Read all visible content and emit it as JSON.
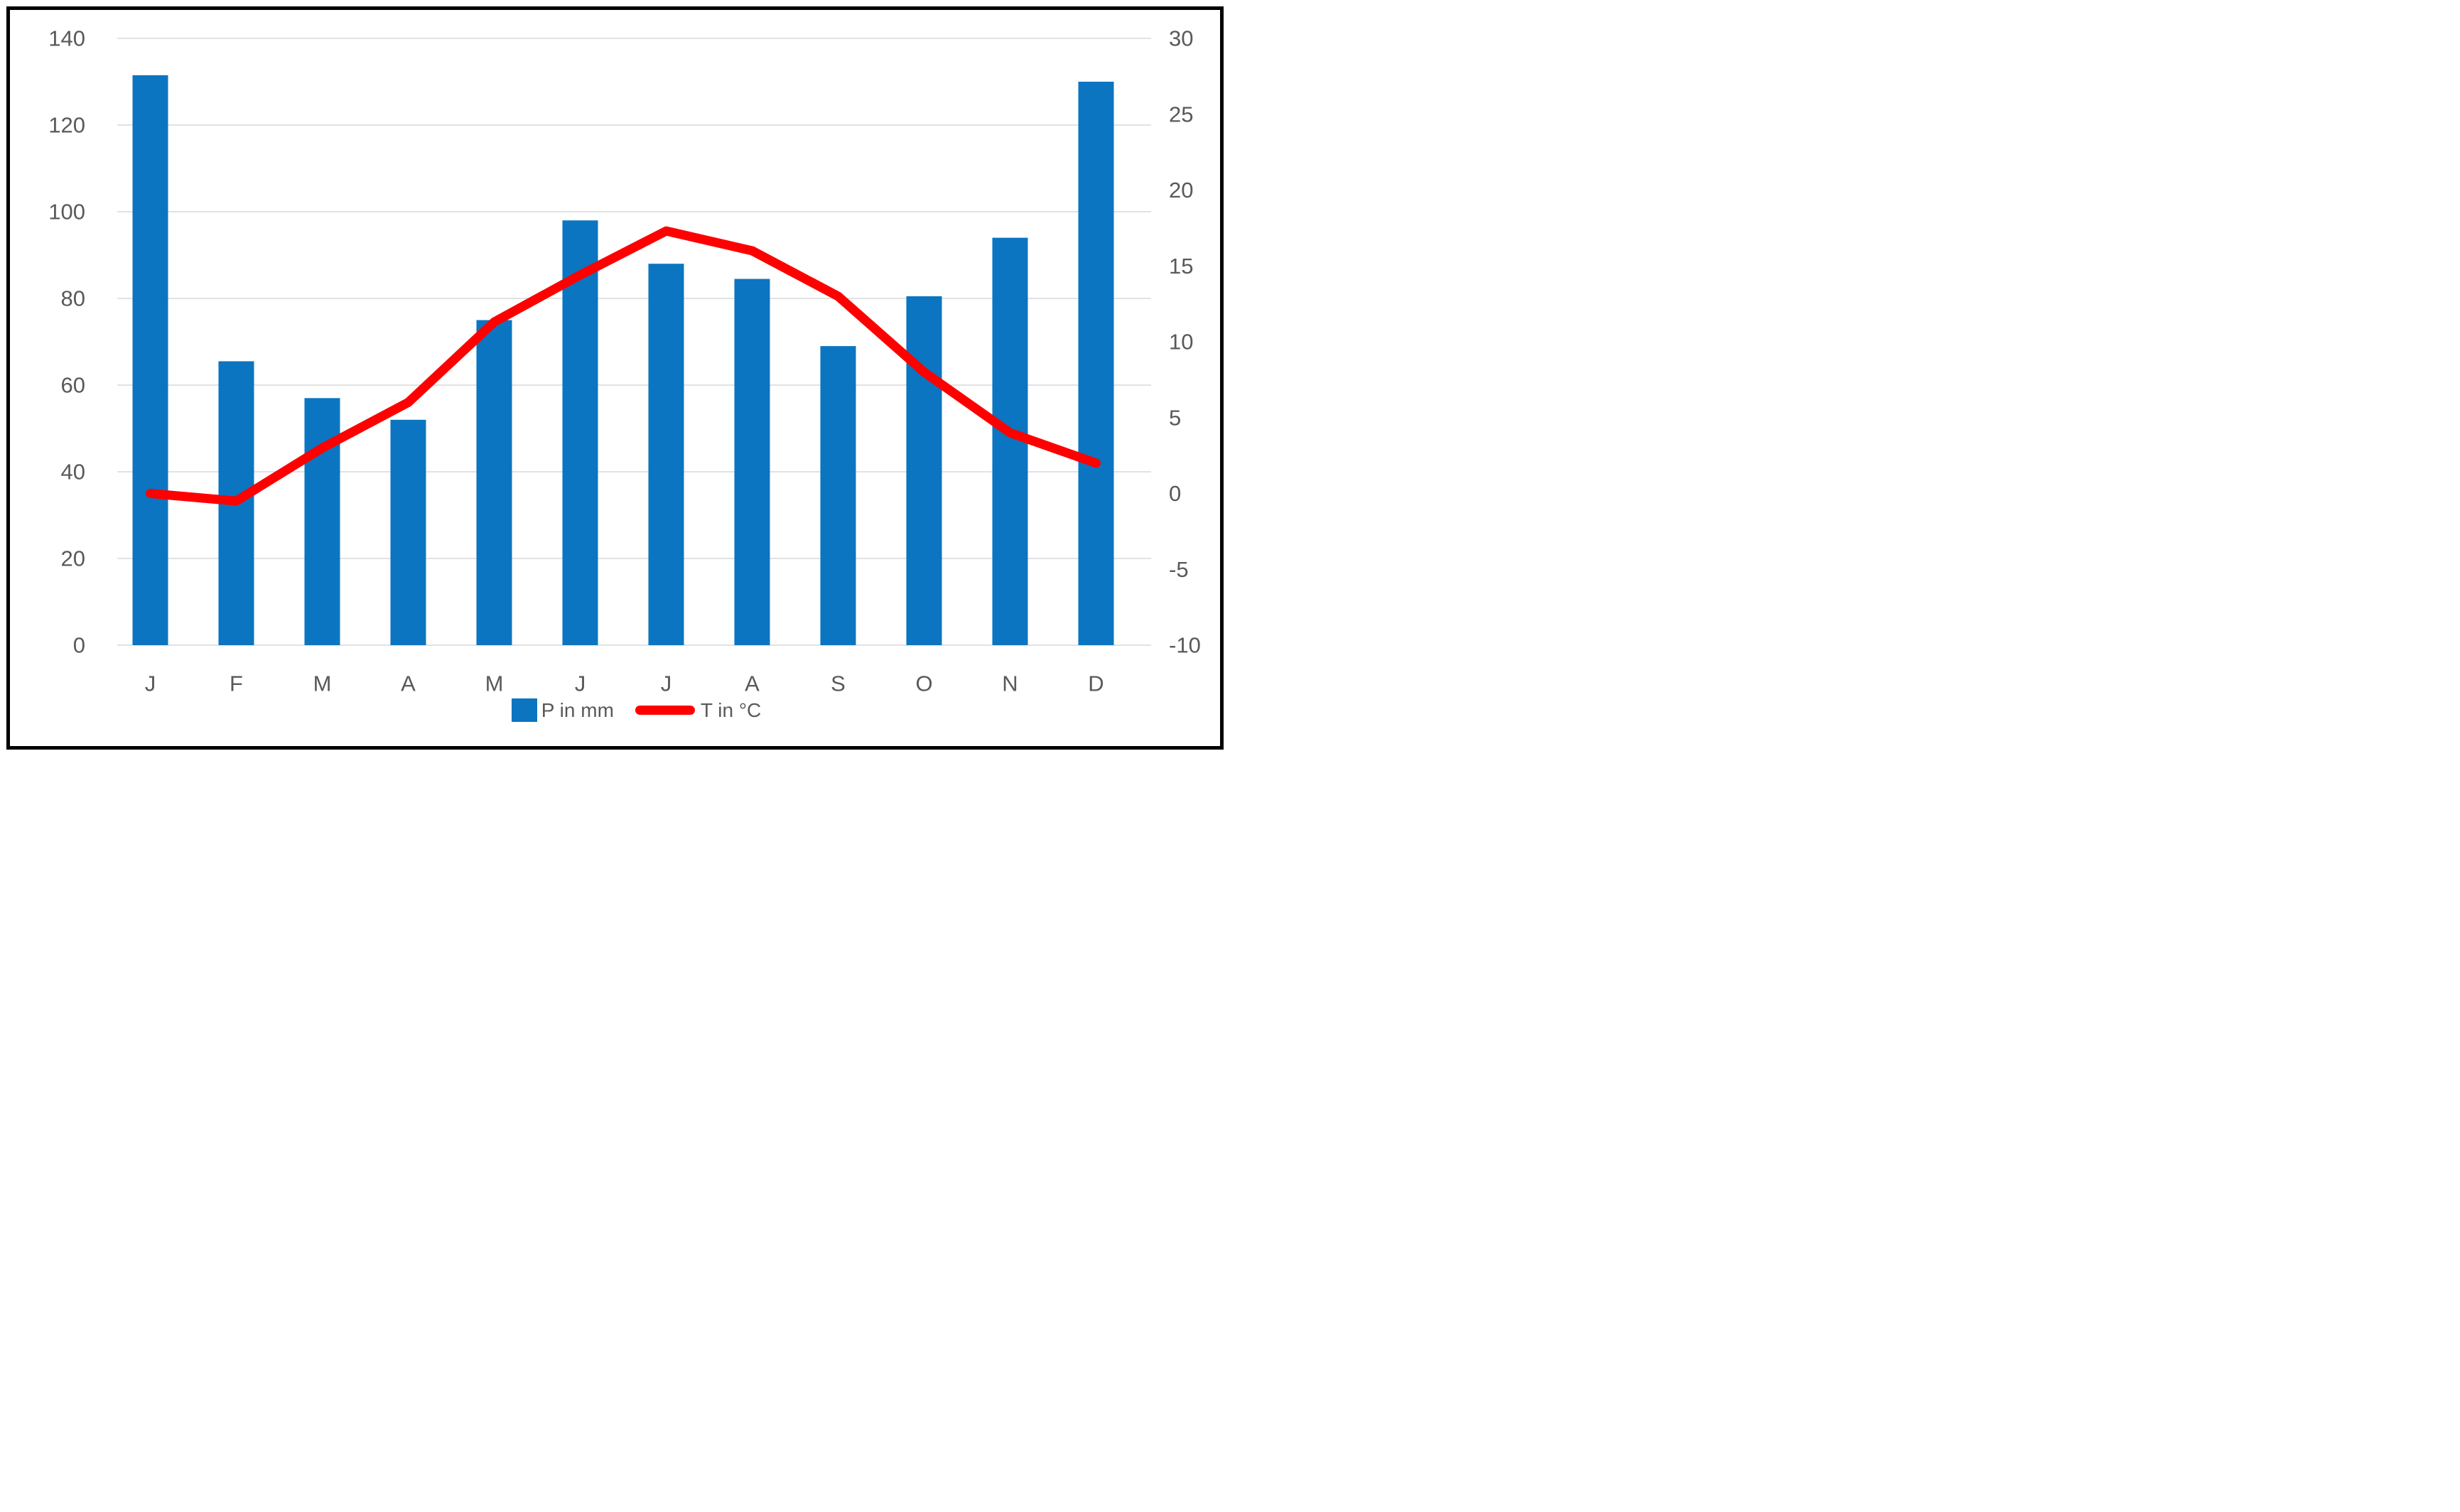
{
  "chart_data": {
    "type": "bar",
    "combo": true,
    "title": "",
    "categories": [
      "J",
      "F",
      "M",
      "A",
      "M",
      "J",
      "J",
      "A",
      "S",
      "O",
      "N",
      "D"
    ],
    "series": [
      {
        "name": "P in mm",
        "type": "bar",
        "color": "#0B75C1",
        "axis": "left",
        "values": [
          131.5,
          65.5,
          57,
          52,
          75,
          98,
          88,
          84.5,
          69,
          80.5,
          94,
          130
        ]
      },
      {
        "name": "T in °C",
        "type": "line",
        "color": "#FE0000",
        "axis": "right",
        "values": [
          0,
          -0.5,
          3,
          6,
          11.3,
          14.4,
          17.3,
          16,
          13,
          8,
          4,
          2
        ]
      }
    ],
    "left_axis": {
      "label": "",
      "ticks": [
        140,
        120,
        100,
        80,
        60,
        40,
        20,
        0
      ],
      "min": 0,
      "max": 140
    },
    "right_axis": {
      "label": "",
      "ticks": [
        30,
        25,
        20,
        15,
        10,
        5,
        0,
        -5,
        -10
      ],
      "min": -10,
      "max": 30
    },
    "grid": "horizontal",
    "gridline_color": "#D9D9D9",
    "text_color": "#595959",
    "frame_color": "#000000",
    "legend_position": "bottom"
  }
}
